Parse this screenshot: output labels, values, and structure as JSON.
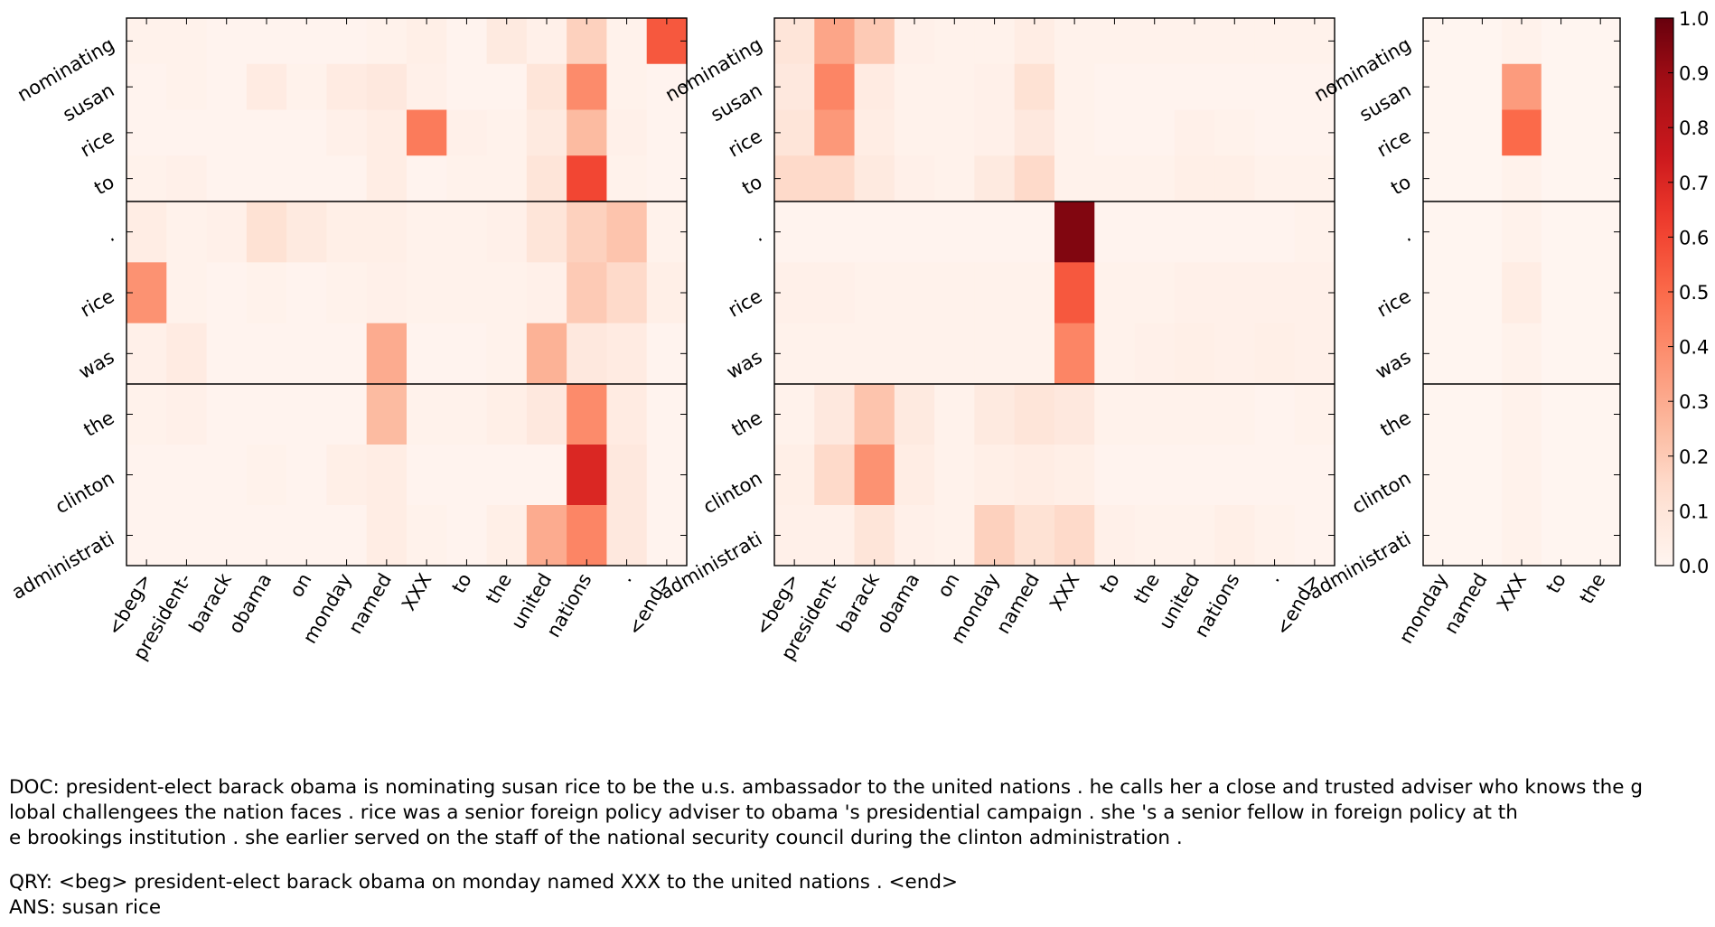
{
  "chart_data": {
    "type": "heatmap",
    "colormap": "Reds",
    "colors": {
      "low": "#fff5f0",
      "high": "#67000d"
    },
    "zlim": [
      0.0,
      1.0
    ],
    "colorbar_ticks": [
      "0.0",
      "0.1",
      "0.2",
      "0.3",
      "0.4",
      "0.5",
      "0.6",
      "0.7",
      "0.8",
      "0.9",
      "1.0"
    ],
    "row_labels": [
      "nominating",
      "susan",
      "rice",
      "to",
      ".",
      "rice",
      "was",
      "the",
      "clinton",
      "administrati"
    ],
    "panels": [
      {
        "col_labels": [
          "<beg>",
          "president-",
          "barack",
          "obama",
          "on",
          "monday",
          "named",
          "XXX",
          "to",
          "the",
          "united",
          "nations",
          ".",
          "<end>"
        ],
        "values": [
          [
            0.02,
            0.02,
            0.01,
            0.01,
            0.01,
            0.01,
            0.02,
            0.04,
            0.01,
            0.07,
            0.03,
            0.18,
            0.02,
            0.55
          ],
          [
            0.01,
            0.02,
            0.01,
            0.06,
            0.02,
            0.06,
            0.08,
            0.03,
            0.01,
            0.01,
            0.1,
            0.4,
            0.02,
            0.01
          ],
          [
            0.01,
            0.01,
            0.01,
            0.01,
            0.01,
            0.03,
            0.05,
            0.45,
            0.03,
            0.02,
            0.07,
            0.25,
            0.03,
            0.01
          ],
          [
            0.02,
            0.03,
            0.01,
            0.01,
            0.01,
            0.01,
            0.05,
            0.01,
            0.02,
            0.02,
            0.1,
            0.6,
            0.02,
            0.01
          ],
          [
            0.05,
            0.02,
            0.03,
            0.12,
            0.07,
            0.04,
            0.04,
            0.02,
            0.02,
            0.03,
            0.1,
            0.18,
            0.22,
            0.02
          ],
          [
            0.38,
            0.02,
            0.01,
            0.02,
            0.01,
            0.02,
            0.03,
            0.02,
            0.02,
            0.02,
            0.03,
            0.2,
            0.15,
            0.04
          ],
          [
            0.03,
            0.06,
            0.01,
            0.01,
            0.01,
            0.01,
            0.3,
            0.01,
            0.01,
            0.02,
            0.28,
            0.08,
            0.06,
            0.01
          ],
          [
            0.02,
            0.03,
            0.01,
            0.01,
            0.01,
            0.01,
            0.25,
            0.02,
            0.02,
            0.04,
            0.08,
            0.4,
            0.06,
            0.01
          ],
          [
            0.01,
            0.01,
            0.01,
            0.02,
            0.01,
            0.04,
            0.05,
            0.01,
            0.01,
            0.01,
            0.01,
            0.7,
            0.08,
            0.01
          ],
          [
            0.01,
            0.01,
            0.01,
            0.01,
            0.01,
            0.01,
            0.05,
            0.02,
            0.01,
            0.04,
            0.3,
            0.42,
            0.08,
            0.01
          ]
        ]
      },
      {
        "col_labels": [
          "<beg>",
          "president-",
          "barack",
          "obama",
          "on",
          "monday",
          "named",
          "XXX",
          "to",
          "the",
          "united",
          "nations",
          ".",
          "<end>"
        ],
        "values": [
          [
            0.1,
            0.32,
            0.2,
            0.03,
            0.02,
            0.02,
            0.05,
            0.02,
            0.02,
            0.02,
            0.02,
            0.02,
            0.02,
            0.02
          ],
          [
            0.08,
            0.42,
            0.06,
            0.02,
            0.02,
            0.03,
            0.12,
            0.02,
            0.01,
            0.01,
            0.01,
            0.01,
            0.01,
            0.01
          ],
          [
            0.1,
            0.36,
            0.05,
            0.02,
            0.02,
            0.03,
            0.08,
            0.02,
            0.01,
            0.01,
            0.03,
            0.02,
            0.01,
            0.01
          ],
          [
            0.15,
            0.15,
            0.07,
            0.03,
            0.02,
            0.07,
            0.15,
            0.02,
            0.02,
            0.02,
            0.04,
            0.04,
            0.02,
            0.02
          ],
          [
            0.01,
            0.01,
            0.01,
            0.01,
            0.01,
            0.01,
            0.01,
            0.95,
            0.01,
            0.01,
            0.01,
            0.01,
            0.01,
            0.02
          ],
          [
            0.03,
            0.03,
            0.02,
            0.02,
            0.02,
            0.02,
            0.02,
            0.55,
            0.02,
            0.02,
            0.03,
            0.03,
            0.03,
            0.03
          ],
          [
            0.02,
            0.02,
            0.02,
            0.02,
            0.02,
            0.02,
            0.02,
            0.42,
            0.02,
            0.03,
            0.04,
            0.03,
            0.04,
            0.03
          ],
          [
            0.02,
            0.08,
            0.22,
            0.07,
            0.02,
            0.07,
            0.1,
            0.08,
            0.02,
            0.02,
            0.02,
            0.02,
            0.01,
            0.02
          ],
          [
            0.04,
            0.15,
            0.38,
            0.05,
            0.02,
            0.04,
            0.05,
            0.04,
            0.01,
            0.01,
            0.01,
            0.01,
            0.01,
            0.01
          ],
          [
            0.03,
            0.03,
            0.1,
            0.03,
            0.02,
            0.18,
            0.12,
            0.15,
            0.03,
            0.02,
            0.02,
            0.04,
            0.02,
            0.01
          ]
        ]
      },
      {
        "col_labels": [
          "monday",
          "named",
          "XXX",
          "to",
          "the"
        ],
        "values": [
          [
            0.0,
            0.0,
            0.02,
            0.0,
            0.0
          ],
          [
            0.0,
            0.0,
            0.35,
            0.0,
            0.0
          ],
          [
            0.0,
            0.0,
            0.5,
            0.0,
            0.0
          ],
          [
            0.0,
            0.0,
            0.02,
            0.0,
            0.0
          ],
          [
            0.0,
            0.0,
            0.02,
            0.0,
            0.0
          ],
          [
            0.0,
            0.0,
            0.05,
            0.0,
            0.0
          ],
          [
            0.0,
            0.0,
            0.02,
            0.0,
            0.0
          ],
          [
            0.0,
            0.0,
            0.02,
            0.0,
            0.0
          ],
          [
            0.0,
            0.0,
            0.02,
            0.0,
            0.0
          ],
          [
            0.0,
            0.0,
            0.02,
            0.0,
            0.0
          ]
        ]
      }
    ]
  },
  "caption": {
    "doc_lines": [
      "DOC: president-elect barack obama is nominating susan rice to be the u.s. ambassador to the united nations . he calls her a close and trusted adviser who knows the g",
      "lobal challengees the nation faces . rice was a senior foreign policy adviser to obama 's presidential campaign . she 's a senior fellow in foreign policy at th",
      "e brookings institution . she earlier served on the staff of the national security council during the clinton administration ."
    ],
    "qry": "QRY: <beg> president-elect barack obama on monday named XXX to the united nations . <end>",
    "ans": "ANS: susan rice"
  }
}
